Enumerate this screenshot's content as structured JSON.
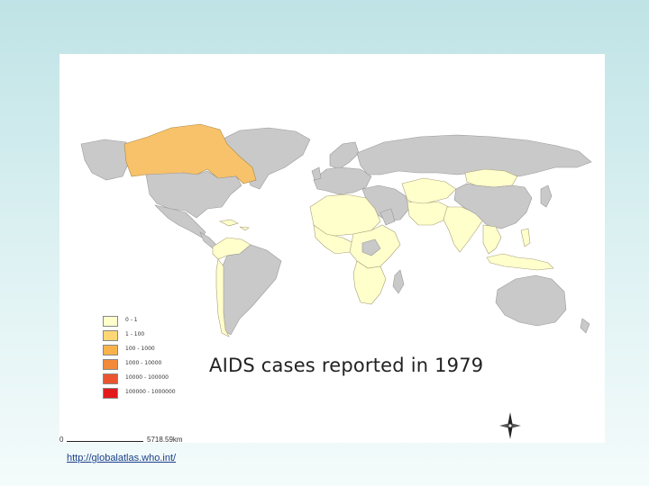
{
  "map": {
    "title": "AIDS cases reported in  1979",
    "legend": [
      {
        "label": "0 - 1",
        "color": "#ffffcc"
      },
      {
        "label": "1 - 100",
        "color": "#fdd775"
      },
      {
        "label": "100 - 1000",
        "color": "#f8b24c"
      },
      {
        "label": "1000 - 10000",
        "color": "#f28a3a"
      },
      {
        "label": "10000 - 100000",
        "color": "#ea5530"
      },
      {
        "label": "100000 - 1000000",
        "color": "#e31a1c"
      }
    ],
    "no_data_color": "#c9c9c9",
    "scale": {
      "start": "0",
      "end": "5718.59km"
    },
    "compass_icon": "compass-rose-icon"
  },
  "footer": {
    "source_link": "http://globalatlas.who.int/"
  }
}
